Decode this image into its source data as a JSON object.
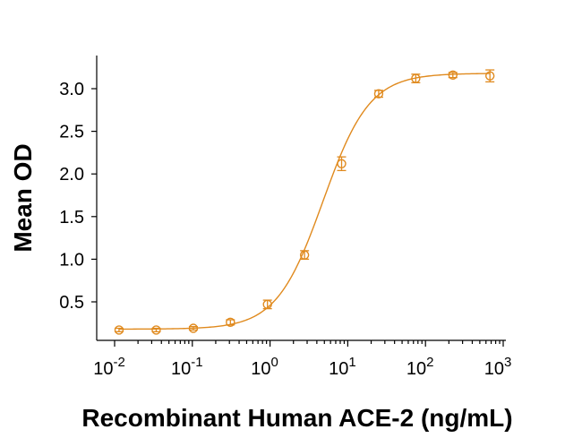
{
  "chart_data": {
    "type": "scatter",
    "title": "",
    "xlabel": "Recombinant Human ACE-2 (ng/mL)",
    "ylabel": "Mean OD",
    "x_scale": "log",
    "xlim": [
      0.01,
      1000
    ],
    "ylim": [
      0.2,
      3.3
    ],
    "x_ticks": [
      0.01,
      0.1,
      1,
      10,
      100,
      1000
    ],
    "x_tick_labels": [
      {
        "base": "10",
        "exp": "-2"
      },
      {
        "base": "10",
        "exp": "-1"
      },
      {
        "base": "10",
        "exp": "0"
      },
      {
        "base": "10",
        "exp": "1"
      },
      {
        "base": "10",
        "exp": "2"
      },
      {
        "base": "10",
        "exp": "3"
      }
    ],
    "y_ticks": [
      0.5,
      1.0,
      1.5,
      2.0,
      2.5,
      3.0
    ],
    "y_tick_labels": [
      "0.5",
      "1.0",
      "1.5",
      "2.0",
      "2.5",
      "3.0"
    ],
    "grid": false,
    "color": "#E08A1E",
    "series": [
      {
        "marker": "open-circle",
        "points": [
          {
            "x": 0.0114,
            "y": 0.17,
            "err": 0.02
          },
          {
            "x": 0.0343,
            "y": 0.17,
            "err": 0.02
          },
          {
            "x": 0.103,
            "y": 0.19,
            "err": 0.02
          },
          {
            "x": 0.309,
            "y": 0.26,
            "err": 0.03
          },
          {
            "x": 0.926,
            "y": 0.47,
            "err": 0.05
          },
          {
            "x": 2.78,
            "y": 1.05,
            "err": 0.05
          },
          {
            "x": 8.33,
            "y": 2.12,
            "err": 0.08
          },
          {
            "x": 25.0,
            "y": 2.94,
            "err": 0.04
          },
          {
            "x": 75.0,
            "y": 3.12,
            "err": 0.05
          },
          {
            "x": 225.0,
            "y": 3.16,
            "err": 0.03
          },
          {
            "x": 675.0,
            "y": 3.15,
            "err": 0.07
          }
        ]
      }
    ],
    "fit_curve": {
      "model": "4PL",
      "bottom": 0.18,
      "top": 3.18,
      "ec50": 4.8,
      "hill": 1.45
    }
  }
}
